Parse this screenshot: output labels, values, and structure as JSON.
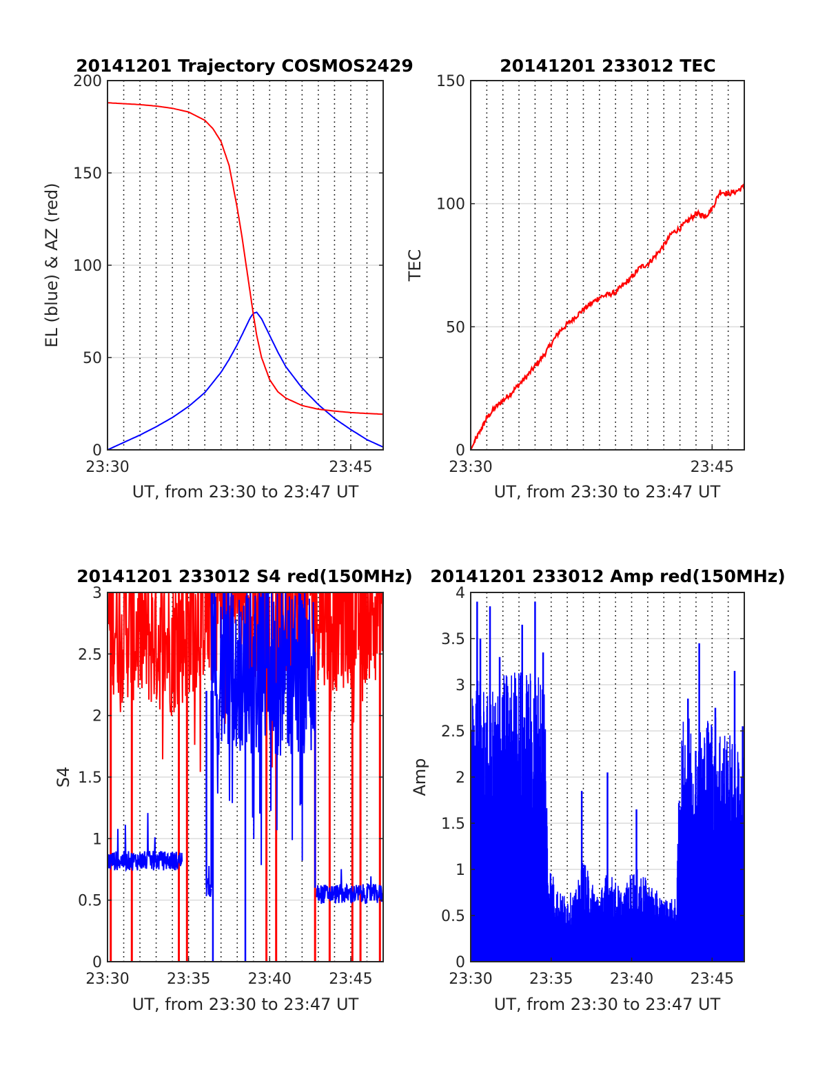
{
  "figure": {
    "background": "#ffffff",
    "colors": {
      "el": "#0000ff",
      "az": "#ff0000",
      "grid": "#dcdcdc",
      "vgrid": "#000000",
      "axis": "#262626"
    }
  },
  "chart_data": [
    {
      "id": "trajectory",
      "type": "line",
      "title": "20141201 Trajectory COSMOS2429",
      "xlabel": "UT, from 23:30 to 23:47 UT",
      "ylabel": "EL (blue) & AZ (red)",
      "xlim_min": [
        0,
        17
      ],
      "ylim": [
        0,
        200
      ],
      "yticks": [
        0,
        50,
        100,
        150,
        200
      ],
      "xticks": [
        {
          "v": 0,
          "label": "23:30"
        },
        {
          "v": 15,
          "label": "23:45"
        }
      ],
      "grid": "horizontal solid, vertical dotted every minute",
      "series": [
        {
          "name": "EL",
          "color": "#0000ff",
          "x": [
            0,
            1,
            2,
            3,
            4,
            5,
            6,
            7,
            7.5,
            8,
            8.5,
            8.8,
            9,
            9.2,
            9.5,
            10,
            10.5,
            11,
            12,
            13,
            14,
            15,
            16,
            17
          ],
          "y": [
            0,
            4,
            8,
            12.5,
            17.5,
            23.5,
            31,
            42,
            49,
            57,
            66,
            71.5,
            74,
            74.5,
            71,
            62,
            53,
            45,
            33.5,
            24.5,
            17,
            11,
            5.5,
            1.5
          ]
        },
        {
          "name": "AZ",
          "color": "#ff0000",
          "x": [
            0,
            1,
            2,
            3,
            4,
            5,
            6,
            6.5,
            7,
            7.5,
            8,
            8.3,
            8.6,
            8.8,
            9,
            9.2,
            9.5,
            10,
            10.5,
            11,
            12,
            13,
            14,
            15,
            16,
            17
          ],
          "y": [
            188,
            187.5,
            187,
            186.2,
            185,
            183,
            178.5,
            174,
            167,
            154,
            131,
            115,
            97,
            85,
            73,
            62,
            50,
            38,
            31.5,
            28,
            24,
            22,
            21,
            20.2,
            19.7,
            19.3
          ]
        }
      ]
    },
    {
      "id": "tec",
      "type": "line",
      "title": "20141201 233012 TEC",
      "xlabel": "UT, from 23:30 to 23:47 UT",
      "ylabel": "TEC",
      "xlim_min": [
        0,
        17
      ],
      "ylim": [
        0,
        150
      ],
      "yticks": [
        0,
        50,
        100,
        150
      ],
      "xticks": [
        {
          "v": 0,
          "label": "23:30"
        },
        {
          "v": 15,
          "label": "23:45"
        }
      ],
      "series": [
        {
          "name": "TEC",
          "color": "#ff0000",
          "x": [
            0,
            0.3,
            0.7,
            1,
            1.5,
            2,
            2.5,
            3,
            3.5,
            4,
            4.5,
            5,
            5.5,
            6,
            6.5,
            7,
            7.5,
            8,
            8.5,
            9,
            9.5,
            10,
            10.5,
            11,
            11.5,
            12,
            12.5,
            13,
            13.5,
            14,
            14.3,
            14.6,
            15,
            15.5,
            16,
            16.5,
            17
          ],
          "y": [
            0,
            4,
            9,
            13,
            17,
            20,
            23,
            26.5,
            30,
            34,
            38,
            43,
            48,
            51,
            54,
            57,
            59.5,
            62,
            63,
            64,
            67,
            70,
            74,
            75.5,
            79,
            83,
            88,
            90,
            93,
            96,
            95.5,
            95,
            98,
            105,
            104,
            105,
            107
          ]
        }
      ]
    },
    {
      "id": "s4",
      "type": "line",
      "title": "20141201 233012 S4 red(150MHz)",
      "xlabel": "UT, from 23:30 to 23:47 UT",
      "ylabel": "S4",
      "xlim_min": [
        0,
        17
      ],
      "ylim": [
        0,
        3
      ],
      "yticks": [
        0,
        0.5,
        1,
        1.5,
        2,
        2.5,
        3
      ],
      "xticks": [
        {
          "v": 0,
          "label": "23:30"
        },
        {
          "v": 5,
          "label": "23:35"
        },
        {
          "v": 10,
          "label": "23:40"
        },
        {
          "v": 15,
          "label": "23:45"
        }
      ],
      "series": [
        {
          "name": "red",
          "color": "#ff0000",
          "noisy_envelope": [
            [
              0,
              2.6
            ],
            [
              2,
              2.5
            ],
            [
              4,
              2.4
            ],
            [
              6,
              2.7
            ],
            [
              8,
              2.9
            ],
            [
              10,
              2.5
            ],
            [
              12,
              2.8
            ],
            [
              14,
              2.6
            ],
            [
              17,
              2.7
            ]
          ],
          "dropouts_x": [
            0.2,
            1.5,
            4.4,
            4.9,
            9.8,
            10.4,
            12.8,
            13.7,
            15.1,
            15.6,
            16.8
          ]
        },
        {
          "name": "blue",
          "color": "#0000ff",
          "segments": [
            {
              "x": [
                0,
                4.6
              ],
              "base": 0.82,
              "noise": 0.08
            },
            {
              "x": [
                6.1,
                6.4
              ],
              "base": 0.6,
              "noise": 0.08
            },
            {
              "x": [
                6.4,
                12.8
              ],
              "base": 2.3,
              "noise": 0.4
            },
            {
              "x": [
                12.9,
                17
              ],
              "base": 0.55,
              "noise": 0.08
            }
          ]
        }
      ]
    },
    {
      "id": "amp",
      "type": "line",
      "title": "20141201 233012 Amp red(150MHz)",
      "xlabel": "UT, from 23:30 to 23:47 UT",
      "ylabel": "Amp",
      "xlim_min": [
        0,
        17
      ],
      "ylim": [
        0,
        4
      ],
      "yticks": [
        0,
        0.5,
        1,
        1.5,
        2,
        2.5,
        3,
        3.5,
        4
      ],
      "xticks": [
        {
          "v": 0,
          "label": "23:30"
        },
        {
          "v": 5,
          "label": "23:35"
        },
        {
          "v": 10,
          "label": "23:40"
        },
        {
          "v": 15,
          "label": "23:45"
        }
      ],
      "series": [
        {
          "name": "blue",
          "color": "#0000ff",
          "envelope": [
            [
              0,
              2.4
            ],
            [
              0.5,
              2.6
            ],
            [
              1,
              2.3
            ],
            [
              2,
              2.5
            ],
            [
              3,
              2.6
            ],
            [
              4,
              2.5
            ],
            [
              4.6,
              2.6
            ],
            [
              4.8,
              0.9
            ],
            [
              5.5,
              0.6
            ],
            [
              6.5,
              0.6
            ],
            [
              7,
              0.9
            ],
            [
              7.5,
              0.7
            ],
            [
              8,
              0.6
            ],
            [
              8.5,
              0.8
            ],
            [
              9,
              0.7
            ],
            [
              9.5,
              0.6
            ],
            [
              10,
              0.8
            ],
            [
              10.5,
              0.8
            ],
            [
              11,
              0.7
            ],
            [
              12,
              0.55
            ],
            [
              12.8,
              0.55
            ],
            [
              13,
              2.0
            ],
            [
              13.5,
              2.2
            ],
            [
              14,
              2.0
            ],
            [
              15,
              2.2
            ],
            [
              16,
              2.0
            ],
            [
              17,
              1.8
            ]
          ],
          "peaks": [
            [
              0.4,
              3.9
            ],
            [
              0.6,
              3.5
            ],
            [
              1.2,
              3.85
            ],
            [
              1.8,
              3.3
            ],
            [
              3.2,
              3.65
            ],
            [
              4.0,
              3.9
            ],
            [
              4.5,
              3.35
            ],
            [
              6.9,
              1.85
            ],
            [
              8.5,
              2.05
            ],
            [
              10.3,
              1.65
            ],
            [
              13.5,
              2.85
            ],
            [
              14.2,
              3.45
            ],
            [
              15.2,
              2.75
            ],
            [
              16.4,
              3.15
            ],
            [
              16.9,
              2.55
            ]
          ]
        }
      ]
    }
  ]
}
